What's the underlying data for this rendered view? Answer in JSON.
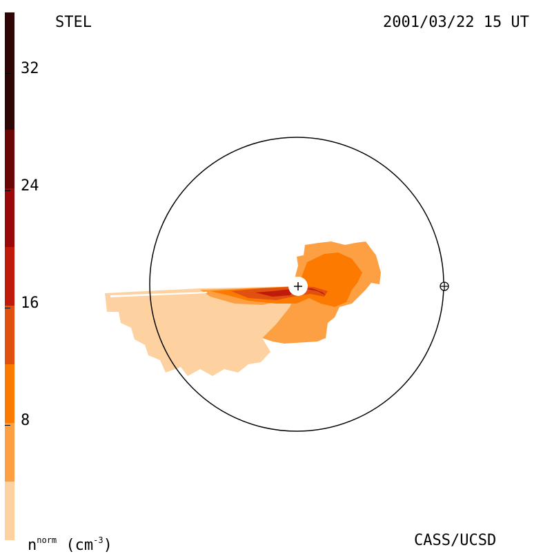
{
  "header": {
    "station": "STEL",
    "timestamp": "2001/03/22 15 UT"
  },
  "footer": {
    "units_main": "n",
    "units_sup": "norm",
    "units_rest": "(cm",
    "units_exp": "-3",
    "units_close": ")",
    "credit": "CASS/UCSD"
  },
  "colorbar": {
    "levels": [
      {
        "min": 0,
        "max": 4,
        "color": "#fdd1a0"
      },
      {
        "min": 4,
        "max": 8,
        "color": "#fda044"
      },
      {
        "min": 8,
        "max": 12,
        "color": "#fd7a00"
      },
      {
        "min": 12,
        "max": 16,
        "color": "#e05010"
      },
      {
        "min": 16,
        "max": 20,
        "color": "#c01a0a"
      },
      {
        "min": 20,
        "max": 24,
        "color": "#9a0808"
      },
      {
        "min": 24,
        "max": 28,
        "color": "#6a0606"
      },
      {
        "min": 28,
        "max": 36,
        "color": "#2e0606"
      }
    ],
    "range": [
      0,
      36
    ],
    "ticks": [
      {
        "value": 8,
        "label": "8"
      },
      {
        "value": 16,
        "label": "16"
      },
      {
        "value": 24,
        "label": "24"
      },
      {
        "value": 32,
        "label": "32"
      }
    ]
  },
  "diagram": {
    "sun_symbol": "+",
    "earth_symbol": "earth-symbol"
  }
}
